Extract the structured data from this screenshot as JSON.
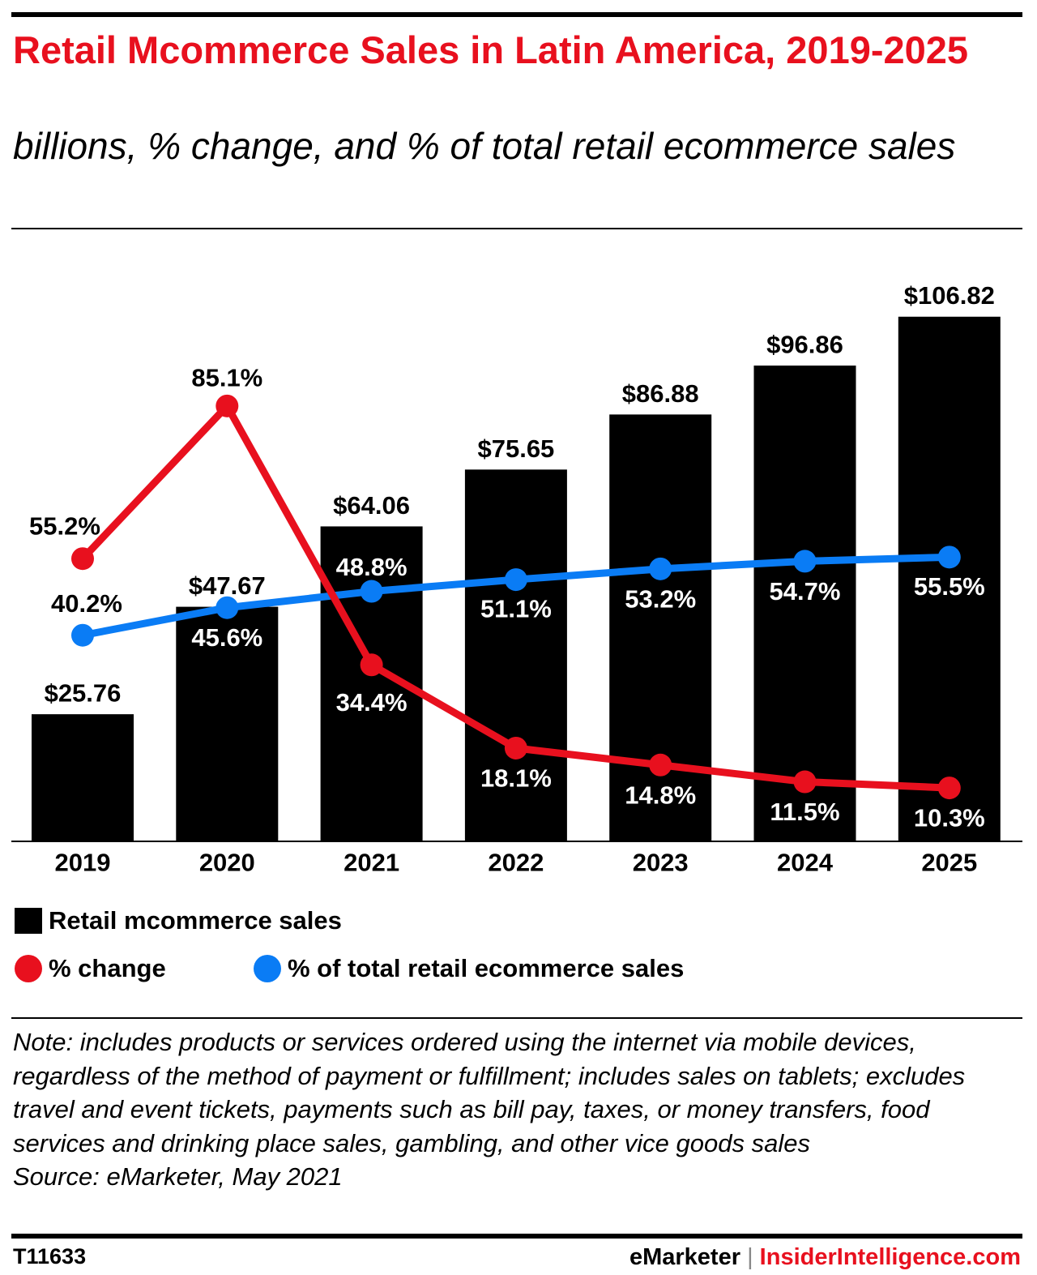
{
  "title": "Retail Mcommerce Sales in Latin America, 2019-2025",
  "subtitle": "billions, % change, and % of total retail ecommerce sales",
  "chart_data": {
    "type": "bar+line",
    "categories": [
      "2019",
      "2020",
      "2021",
      "2022",
      "2023",
      "2024",
      "2025"
    ],
    "series": [
      {
        "name": "Retail mcommerce sales",
        "type": "bar",
        "color": "#000000",
        "values": [
          25.76,
          47.67,
          64.06,
          75.65,
          86.88,
          96.86,
          106.82
        ],
        "labels": [
          "$25.76",
          "$47.67",
          "$64.06",
          "$75.65",
          "$86.88",
          "$96.86",
          "$106.82"
        ]
      },
      {
        "name": "% change",
        "type": "line",
        "color": "#e8101e",
        "values": [
          55.2,
          85.1,
          34.4,
          18.1,
          14.8,
          11.5,
          10.3
        ],
        "labels": [
          "55.2%",
          "85.1%",
          "34.4%",
          "18.1%",
          "14.8%",
          "11.5%",
          "10.3%"
        ]
      },
      {
        "name": "% of total retail ecommerce sales",
        "type": "line",
        "color": "#0a7cf5",
        "values": [
          40.2,
          45.6,
          48.8,
          51.1,
          53.2,
          54.7,
          55.5
        ],
        "labels": [
          "40.2%",
          "45.6%",
          "48.8%",
          "51.1%",
          "53.2%",
          "54.7%",
          "55.5%"
        ]
      }
    ],
    "legend_placement": "bottom-left",
    "grid": false
  },
  "legend": {
    "bar": "Retail mcommerce sales",
    "change": "% change",
    "share": "% of total retail ecommerce sales"
  },
  "note": "Note: includes products or services ordered using the internet via mobile devices, regardless of the method of payment or fulfillment; includes sales on tablets; excludes travel and event tickets, payments such as bill pay, taxes, or money transfers, food services and drinking place sales, gambling, and other vice goods sales",
  "source": "Source: eMarketer, May 2021",
  "footer": {
    "id": "T11633",
    "brand1": "eMarketer",
    "separator": "|",
    "brand2": "InsiderIntelligence.com"
  }
}
